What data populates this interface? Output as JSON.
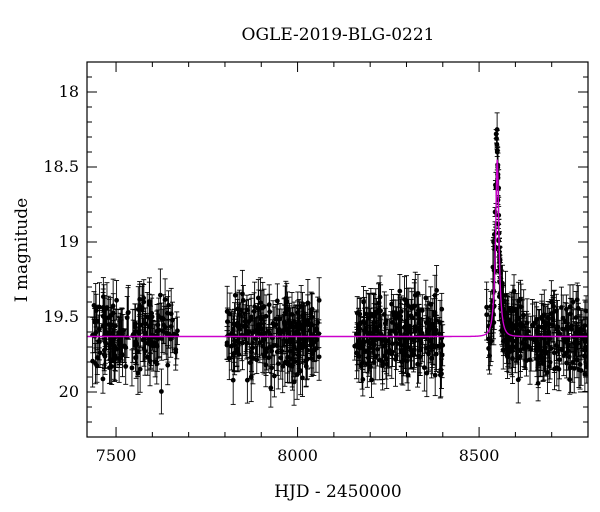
{
  "chart_data": {
    "type": "scatter",
    "title": "OGLE-2019-BLG-0221",
    "xlabel": "HJD - 2450000",
    "ylabel": "I magnitude",
    "xlim": [
      7420,
      8800
    ],
    "ylim": [
      17.8,
      20.3
    ],
    "y_inverted": true,
    "x_ticks": [
      7500,
      8000,
      8500
    ],
    "y_ticks": [
      18,
      18.5,
      19,
      19.5,
      20
    ],
    "grid": false,
    "colors": {
      "data": "#000000",
      "model": "#cc00cc"
    },
    "model": {
      "baseline_mag": 19.63,
      "peak_mag": 18.45,
      "t0": 8550,
      "tE": 12,
      "u0": 0.36
    },
    "seasons": [
      {
        "x_range": [
          7435,
          7670
        ],
        "n_points": 170
      },
      {
        "x_range": [
          7805,
          8060
        ],
        "n_points": 230
      },
      {
        "x_range": [
          8155,
          8400
        ],
        "n_points": 230
      },
      {
        "x_range": [
          8520,
          8800
        ],
        "n_points": 250
      }
    ],
    "peak_points": [
      {
        "x": 8547,
        "y": 18.28
      },
      {
        "x": 8548,
        "y": 18.31
      },
      {
        "x": 8549,
        "y": 18.35
      },
      {
        "x": 8550,
        "y": 18.4
      },
      {
        "x": 8551,
        "y": 18.55
      },
      {
        "x": 8552,
        "y": 18.72
      },
      {
        "x": 8553,
        "y": 18.88
      },
      {
        "x": 8545,
        "y": 18.62
      },
      {
        "x": 8544,
        "y": 18.8
      },
      {
        "x": 8542,
        "y": 18.95
      },
      {
        "x": 8540,
        "y": 19.0
      }
    ]
  }
}
